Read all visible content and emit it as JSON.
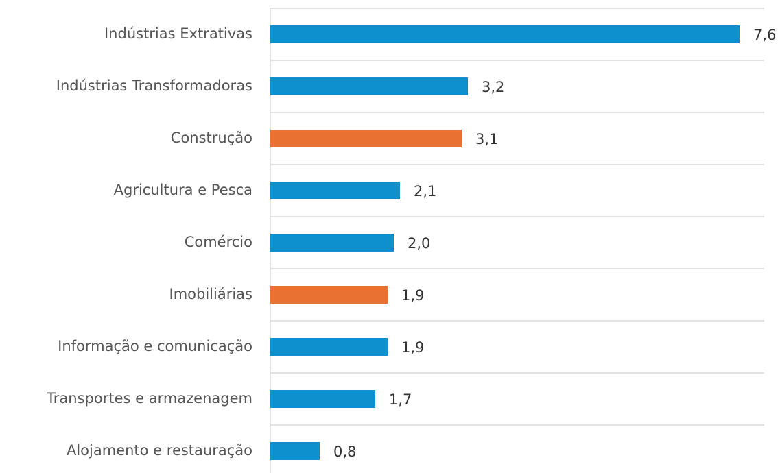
{
  "chart_data": {
    "type": "bar",
    "orientation": "horizontal",
    "categories": [
      "Indústrias Extrativas",
      "Indústrias Transformadoras",
      "Construção",
      "Agricultura e Pesca",
      "Comércio",
      "Imobiliárias",
      "Informação e comunicação",
      "Transportes e armazenagem",
      "Alojamento e restauração"
    ],
    "values": [
      7.6,
      3.2,
      3.1,
      2.1,
      2.0,
      1.9,
      1.9,
      1.7,
      0.8
    ],
    "value_labels": [
      "7,6",
      "3,2",
      "3,1",
      "2,1",
      "2,0",
      "1,9",
      "1,9",
      "1,7",
      "0,8"
    ],
    "colors": [
      "#0e8fce",
      "#0e8fce",
      "#e97132",
      "#0e8fce",
      "#0e8fce",
      "#e97132",
      "#0e8fce",
      "#0e8fce",
      "#0e8fce"
    ],
    "xlim": [
      0,
      8
    ]
  }
}
